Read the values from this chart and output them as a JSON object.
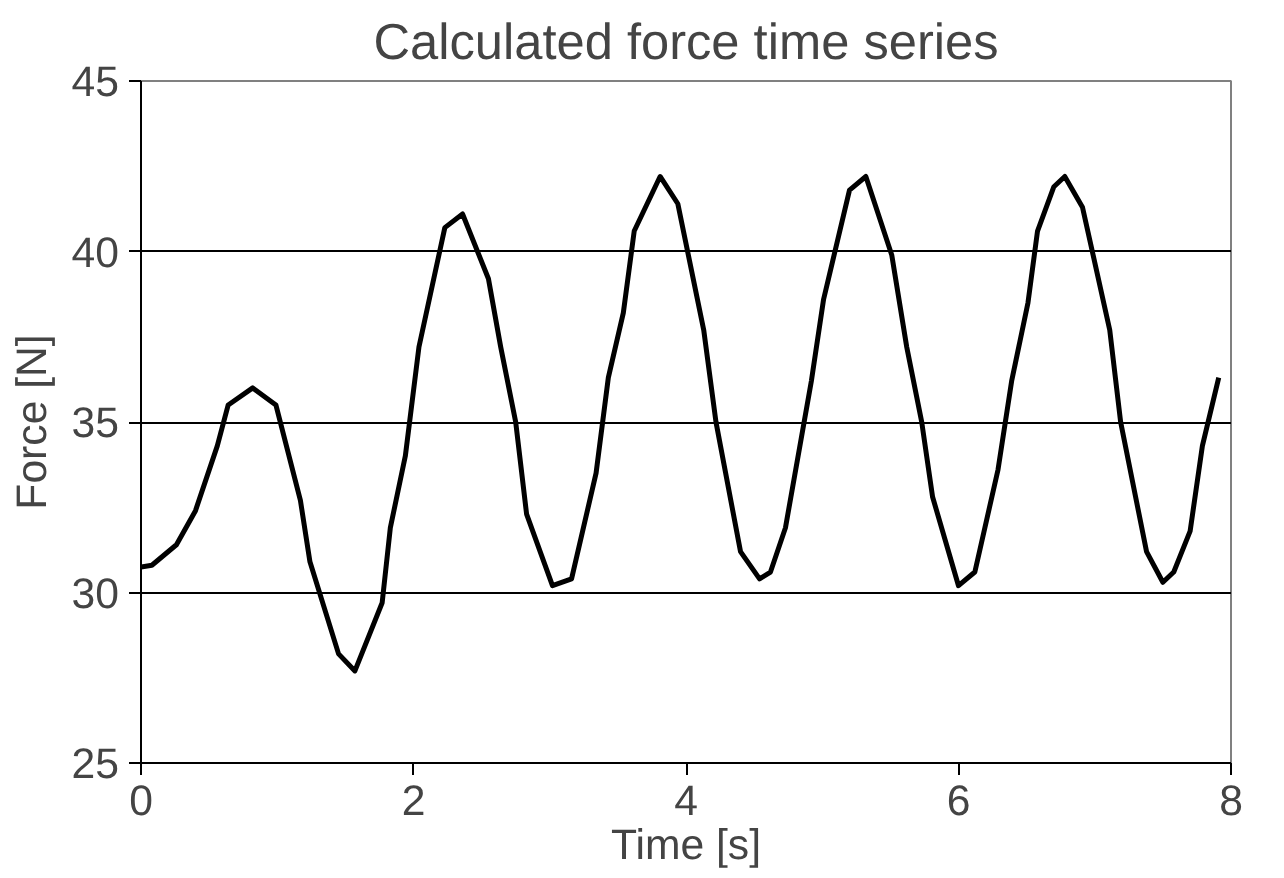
{
  "chart_data": {
    "type": "line",
    "title": "Calculated force time series",
    "xlabel": "Time [s]",
    "ylabel": "Force [N]",
    "x": [
      0,
      0.08,
      0.26,
      0.4,
      0.56,
      0.64,
      0.82,
      0.99,
      1.17,
      1.24,
      1.45,
      1.57,
      1.77,
      1.83,
      1.94,
      2.04,
      2.23,
      2.36,
      2.55,
      2.64,
      2.75,
      2.83,
      3.02,
      3.16,
      3.34,
      3.43,
      3.54,
      3.62,
      3.81,
      3.94,
      4.13,
      4.22,
      4.4,
      4.54,
      4.62,
      4.73,
      4.92,
      5.01,
      5.2,
      5.32,
      5.51,
      5.62,
      5.73,
      5.81,
      6.0,
      6.12,
      6.29,
      6.39,
      6.51,
      6.58,
      6.7,
      6.78,
      6.91,
      7.11,
      7.19,
      7.38,
      7.5,
      7.58,
      7.7,
      7.79,
      7.91
    ],
    "series": [
      {
        "color": "#000000",
        "values": [
          30.75,
          30.8,
          31.4,
          32.4,
          34.3,
          35.5,
          36.0,
          35.5,
          32.7,
          30.9,
          28.2,
          27.7,
          29.7,
          31.9,
          34.0,
          37.2,
          40.7,
          41.1,
          39.2,
          37.2,
          35.0,
          32.3,
          30.2,
          30.4,
          33.5,
          36.3,
          38.2,
          40.6,
          42.2,
          41.4,
          37.7,
          35.0,
          31.2,
          30.4,
          30.6,
          31.9,
          36.2,
          38.6,
          41.8,
          42.2,
          39.9,
          37.2,
          35.0,
          32.8,
          30.2,
          30.6,
          33.6,
          36.2,
          38.5,
          40.6,
          41.9,
          42.2,
          41.3,
          37.7,
          35.0,
          31.2,
          30.3,
          30.6,
          31.8,
          34.3,
          36.3
        ]
      }
    ],
    "xlim": [
      0,
      8
    ],
    "xticks": [
      0,
      2,
      4,
      6,
      8
    ],
    "ylim": [
      25,
      45
    ],
    "yticks": [
      25,
      30,
      35,
      40,
      45
    ],
    "grid": "y",
    "marker": "none",
    "line_style": "solid"
  }
}
